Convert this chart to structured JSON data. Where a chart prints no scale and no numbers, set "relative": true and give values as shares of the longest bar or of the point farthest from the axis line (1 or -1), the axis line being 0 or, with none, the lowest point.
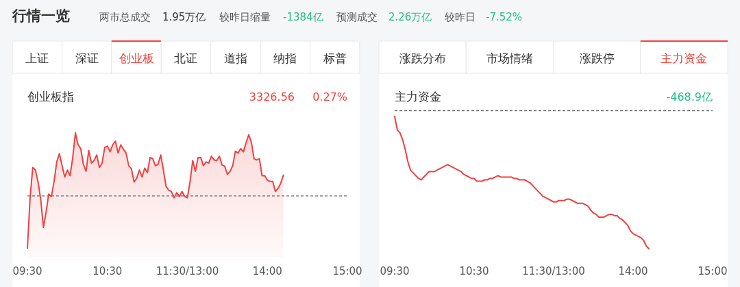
{
  "chart_data": [
    {
      "type": "area",
      "title": "创业板指",
      "relative": true,
      "color": "#f04040",
      "ref_lines": [
        {
          "axis": "y",
          "value": 0,
          "color": "#444444",
          "line_style": "dashed"
        }
      ],
      "annotations": [
        "行情一览",
        "两市总成交",
        "1.95万亿",
        "较昨日缩量",
        "-1384亿",
        "预测成交",
        "2.26万亿",
        "较昨日",
        "-7.52%",
        "上证",
        "深证",
        "创业板",
        "北证",
        "道指",
        "纳指",
        "标普",
        "3326.56",
        "0.27%"
      ],
      "categories": [
        "09:30",
        null,
        null,
        null,
        null,
        null,
        null,
        null,
        null,
        null,
        null,
        null,
        null,
        null,
        null,
        null,
        null,
        null,
        null,
        null,
        null,
        null,
        null,
        null,
        null,
        null,
        null,
        null,
        null,
        null,
        "10:30",
        null,
        null,
        null,
        null,
        null,
        null,
        null,
        null,
        null,
        null,
        null,
        null,
        null,
        null,
        null,
        null,
        null,
        null,
        null,
        null,
        null,
        null,
        null,
        null,
        null,
        null,
        null,
        null,
        null,
        "11:30/13:00",
        null,
        null,
        null,
        null,
        null,
        null,
        null,
        null,
        null,
        null,
        null,
        null,
        null,
        null,
        null,
        null,
        null,
        null,
        null,
        null,
        null,
        null,
        null,
        null,
        null,
        null,
        null,
        null,
        null,
        "14:00",
        null,
        null,
        null,
        null,
        null,
        null,
        null,
        null,
        null,
        null,
        null,
        null,
        null,
        null,
        null,
        null,
        null,
        null,
        null,
        null,
        null,
        null,
        null,
        null,
        null,
        null,
        null,
        null,
        null,
        "15:00"
      ],
      "values": [
        -0.83,
        -0.04,
        0.45,
        0.41,
        0.22,
        -0.06,
        -0.5,
        -0.26,
        0.03,
        -0.01,
        0.23,
        0.54,
        0.67,
        0.48,
        0.3,
        0.41,
        0.32,
        0.61,
        1.0,
        0.81,
        0.75,
        0.5,
        0.39,
        0.72,
        0.52,
        0.56,
        0.65,
        0.45,
        0.52,
        0.77,
        0.79,
        0.7,
        0.81,
        0.87,
        0.68,
        0.81,
        0.74,
        0.68,
        0.48,
        0.43,
        0.22,
        0.28,
        0.41,
        0.3,
        0.44,
        0.37,
        0.61,
        0.59,
        0.48,
        0.5,
        0.65,
        0.41,
        0.15,
        0.09,
        0.07,
        -0.03,
        0.05,
        -0.01,
        0.07,
        -0.01,
        -0.03,
        0.23,
        0.56,
        0.39,
        0.61,
        0.61,
        0.48,
        0.54,
        0.52,
        0.63,
        0.57,
        0.56,
        0.63,
        0.49,
        0.47,
        0.34,
        0.39,
        0.48,
        0.71,
        0.68,
        0.75,
        0.7,
        0.84,
        0.97,
        0.85,
        0.59,
        0.57,
        0.59,
        0.32,
        0.32,
        0.25,
        0.23,
        0.23,
        0.07,
        0.12,
        0.2,
        0.33,
        null,
        null,
        null,
        null,
        null,
        null,
        null,
        null,
        null,
        null,
        null,
        null,
        null,
        null,
        null,
        null,
        null,
        null,
        null,
        null,
        null,
        null,
        null,
        null
      ]
    },
    {
      "type": "line",
      "title": "主力资金",
      "relative": true,
      "color": "#f04040",
      "ref_lines": [
        {
          "axis": "y",
          "value": 0,
          "color": "#444444",
          "line_style": "dashed"
        }
      ],
      "annotations": [
        "涨跌分布",
        "市场情绪",
        "涨跌停",
        "主力资金",
        "-468.9亿"
      ],
      "categories": [
        "09:30",
        null,
        null,
        null,
        null,
        null,
        null,
        null,
        null,
        null,
        null,
        null,
        null,
        null,
        null,
        null,
        null,
        null,
        null,
        null,
        null,
        null,
        null,
        null,
        null,
        null,
        null,
        null,
        null,
        null,
        "10:30",
        null,
        null,
        null,
        null,
        null,
        null,
        null,
        null,
        null,
        null,
        null,
        null,
        null,
        null,
        null,
        null,
        null,
        null,
        null,
        null,
        null,
        null,
        null,
        null,
        null,
        null,
        null,
        null,
        null,
        "11:30/13:00",
        null,
        null,
        null,
        null,
        null,
        null,
        null,
        null,
        null,
        null,
        null,
        null,
        null,
        null,
        null,
        null,
        null,
        null,
        null,
        null,
        null,
        null,
        null,
        null,
        null,
        null,
        null,
        null,
        null,
        "14:00",
        null,
        null,
        null,
        null,
        null,
        null,
        null,
        null,
        null,
        null,
        null,
        null,
        null,
        null,
        null,
        null,
        null,
        null,
        null,
        null,
        null,
        null,
        null,
        null,
        null,
        null,
        null,
        null,
        null,
        "15:00"
      ],
      "values": [
        -0.04,
        -0.14,
        -0.16,
        -0.21,
        -0.28,
        -0.37,
        -0.43,
        -0.45,
        -0.47,
        -0.49,
        -0.5,
        -0.48,
        -0.46,
        -0.44,
        -0.44,
        -0.44,
        -0.43,
        -0.42,
        -0.41,
        -0.4,
        -0.39,
        -0.4,
        -0.41,
        -0.42,
        -0.43,
        -0.44,
        -0.46,
        -0.47,
        -0.48,
        -0.49,
        -0.49,
        -0.51,
        -0.51,
        -0.51,
        -0.5,
        -0.5,
        -0.49,
        -0.49,
        -0.48,
        -0.47,
        -0.48,
        -0.48,
        -0.48,
        -0.48,
        -0.48,
        -0.49,
        -0.49,
        -0.5,
        -0.5,
        -0.5,
        -0.51,
        -0.52,
        -0.54,
        -0.56,
        -0.58,
        -0.6,
        -0.62,
        -0.63,
        -0.64,
        -0.65,
        -0.66,
        -0.66,
        -0.65,
        -0.65,
        -0.65,
        -0.64,
        -0.64,
        -0.65,
        -0.66,
        -0.67,
        -0.67,
        -0.67,
        -0.68,
        -0.69,
        -0.72,
        -0.74,
        -0.75,
        -0.77,
        -0.77,
        -0.77,
        -0.76,
        -0.75,
        -0.75,
        -0.76,
        -0.76,
        -0.78,
        -0.79,
        -0.81,
        -0.83,
        -0.87,
        -0.89,
        -0.9,
        -0.91,
        -0.92,
        -0.94,
        -0.98,
        -1.0,
        null,
        null,
        null,
        null,
        null,
        null,
        null,
        null,
        null,
        null,
        null,
        null,
        null,
        null,
        null,
        null,
        null,
        null,
        null,
        null,
        null,
        null,
        null,
        null
      ]
    }
  ]
}
